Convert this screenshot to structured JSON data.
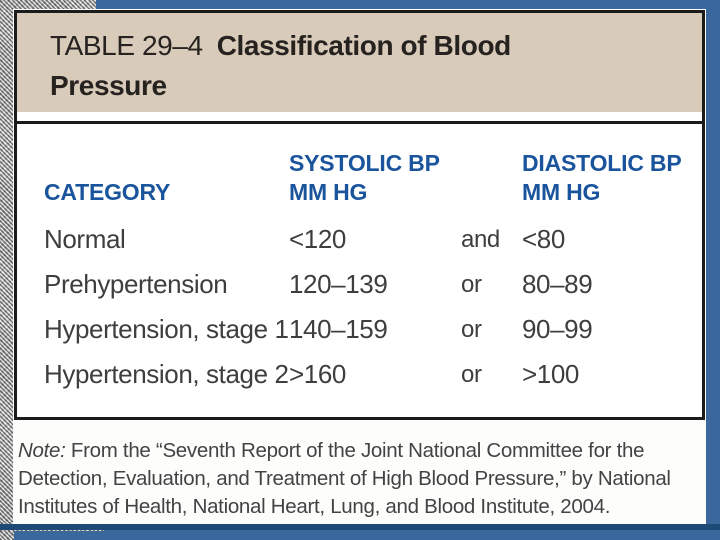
{
  "slide": {
    "background_color": "#3a679c",
    "bottom_rule_color": "#1e4a78",
    "paper_color": "#fdfdfc"
  },
  "table": {
    "title_label": "TABLE 29–4",
    "title": "Classification of Blood Pressure",
    "header_background": "#d9cbba",
    "accent_color": "#1a549c",
    "columns": {
      "category": "CATEGORY",
      "systolic_line1": "SYSTOLIC BP",
      "systolic_line2": "MM HG",
      "diastolic_line1": "DIASTOLIC BP",
      "diastolic_line2": "MM HG"
    },
    "rows": [
      {
        "category": "Normal",
        "systolic": "<120",
        "conjunction": "and",
        "diastolic": "<80"
      },
      {
        "category": "Prehypertension",
        "systolic": "120–139",
        "conjunction": "or",
        "diastolic": "80–89"
      },
      {
        "category": "Hypertension, stage 1",
        "systolic": "140–159",
        "conjunction": "or",
        "diastolic": "90–99"
      },
      {
        "category": "Hypertension, stage 2",
        "systolic": ">160",
        "conjunction": "or",
        "diastolic": ">100"
      }
    ]
  },
  "note": {
    "label": "Note:",
    "text": " From the “Seventh Report of the Joint National Committee for the Detection, Evaluation, and Treatment of High Blood Pressure,” by National Institutes of Health, National Heart, Lung, and Blood Institute, 2004."
  }
}
